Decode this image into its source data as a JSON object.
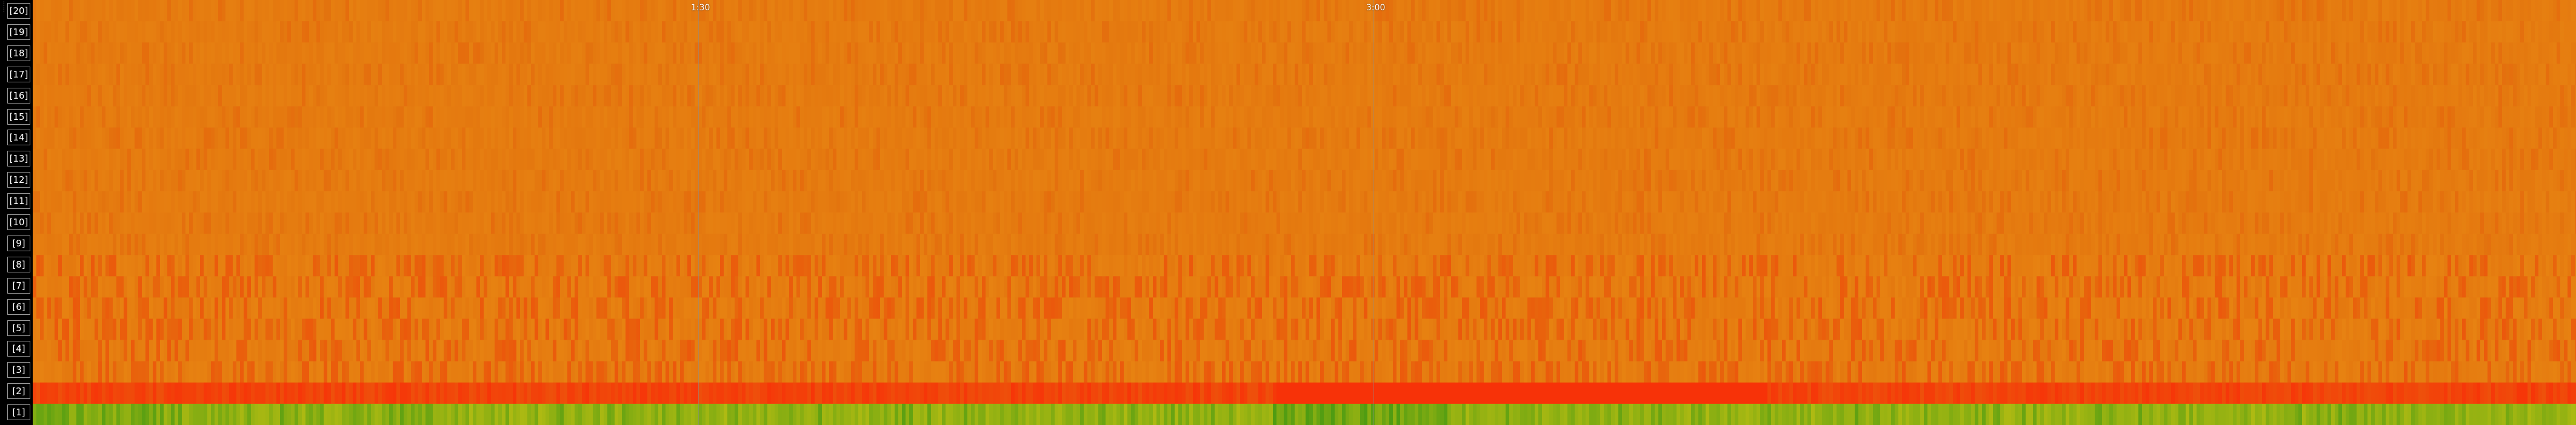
{
  "rows": [
    {
      "label": "[20]"
    },
    {
      "label": "[19]"
    },
    {
      "label": "[18]"
    },
    {
      "label": "[17]"
    },
    {
      "label": "[16]"
    },
    {
      "label": "[15]"
    },
    {
      "label": "[14]"
    },
    {
      "label": "[13]"
    },
    {
      "label": "[12]"
    },
    {
      "label": "[11]"
    },
    {
      "label": "[10]"
    },
    {
      "label": "[9]"
    },
    {
      "label": "[8]"
    },
    {
      "label": "[7]"
    },
    {
      "label": "[6]"
    },
    {
      "label": "[5]"
    },
    {
      "label": "[4]"
    },
    {
      "label": "[3]"
    },
    {
      "label": "[2]"
    },
    {
      "label": "[1]"
    }
  ],
  "time_markers": [
    {
      "label": "1:30"
    },
    {
      "label": "3:00"
    }
  ],
  "sidebar": {
    "settings_icon": "settings-icon"
  },
  "colors": {
    "base_orange": "#e3740e",
    "hot_red": "#fb2607",
    "yellow_green": "#bfbf12",
    "green": "#4f9c12",
    "background": "#000000",
    "label_border": "#9a9a9a",
    "label_text": "#ffffff"
  }
}
